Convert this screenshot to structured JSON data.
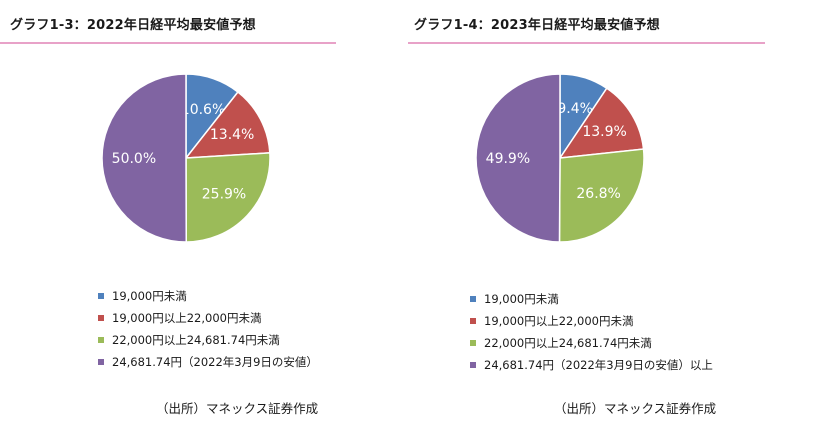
{
  "colors": {
    "blue": "#4F81BD",
    "red": "#C0504D",
    "green": "#9BBB59",
    "purple": "#8064A2",
    "title_rule": "#E8A2C8"
  },
  "chart_data": [
    {
      "type": "pie",
      "title": "グラフ1-3：2022年日経平均最安値予想",
      "labels": [
        "19,000円未満",
        "19,000円以上22,000円未満",
        "22,000円以上24,681.74円未満",
        "24,681.74円（2022年3月9日の安値）"
      ],
      "values": [
        10.6,
        13.4,
        25.9,
        50.0
      ],
      "value_labels": [
        "10.6%",
        "13.4%",
        "25.9%",
        "50.0%"
      ],
      "colors": [
        "#4F81BD",
        "#C0504D",
        "#9BBB59",
        "#8064A2"
      ],
      "start": "12 o'clock",
      "direction": "clockwise",
      "legend_position": "bottom",
      "source": "（出所）マネックス証券作成"
    },
    {
      "type": "pie",
      "title": "グラフ1-4：2023年日経平均最安値予想",
      "labels": [
        "19,000円未満",
        "19,000円以上22,000円未満",
        "22,000円以上24,681.74円未満",
        "24,681.74円（2022年3月9日の安値）以上"
      ],
      "values": [
        9.4,
        13.9,
        26.8,
        49.9
      ],
      "value_labels": [
        "9.4%",
        "13.9%",
        "26.8%",
        "49.9%"
      ],
      "colors": [
        "#4F81BD",
        "#C0504D",
        "#9BBB59",
        "#8064A2"
      ],
      "start": "12 o'clock",
      "direction": "clockwise",
      "legend_position": "bottom",
      "source": "（出所）マネックス証券作成"
    }
  ]
}
